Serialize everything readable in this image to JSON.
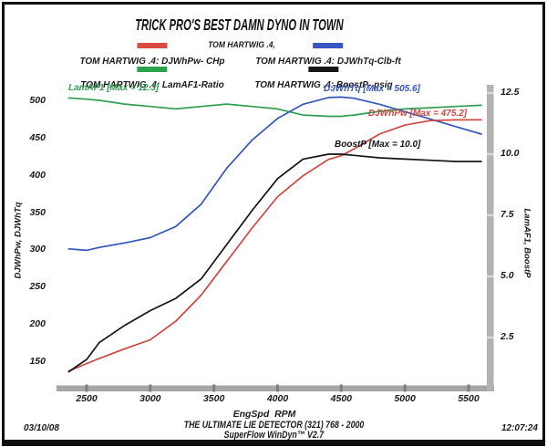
{
  "page": {
    "title": "TRICK PRO'S BEST DAMN DYNO IN TOWN",
    "subtitle": "TOM HARTWIG .4,",
    "footer_line1": "THE ULTIMATE LIE DETECTOR (321) 768 - 2000",
    "footer_line2": "SuperFlow WinDyn™ V2.7",
    "date": "03/10/08",
    "time": "12:07:24"
  },
  "legend": [
    {
      "label": "TOM HARTWIG .4: DJWhPw- CHp",
      "color": "#db4a3f"
    },
    {
      "label": "TOM HARTWIG .4: DJWhTq-Clb-ft",
      "color": "#3656c0"
    },
    {
      "label": "TOM HARTWIG .4: LamAF1-Ratio",
      "color": "#2ca24c"
    },
    {
      "label": "TOM HARTWIG .4: BoostP- psig",
      "color": "#161616"
    }
  ],
  "annotations": [
    {
      "text": "LamAF1 [Max = 12.3]",
      "color": "#2f9e50"
    },
    {
      "text": "DJWhTq [Max = 505.6]",
      "color": "#3656b8"
    },
    {
      "text": "DJWhPw [Max = 475.2]",
      "color": "#cf4540"
    },
    {
      "text": "BoostP [Max = 10.0]",
      "color": "#141414"
    }
  ],
  "axes": {
    "x_label": "EngSpd  RPM",
    "y_left_label": "DJWhPw, DJWhTq",
    "y_right_label": "LamAF1, BoostP",
    "x_ticks": [
      2500,
      3000,
      3500,
      4000,
      4500,
      5000,
      5500
    ],
    "y_left_ticks": [
      500,
      450,
      400,
      350,
      300,
      250,
      200,
      150
    ],
    "y_right_ticks": [
      "12.5",
      "10.0",
      "7.5",
      "5.0",
      "2.5"
    ]
  },
  "chart_data": {
    "type": "line",
    "title": "TRICK PRO'S BEST DAMN DYNO IN TOWN",
    "subtitle": "TOM HARTWIG .4,",
    "xlabel": "EngSpd RPM",
    "ylabel_left": "DJWhPw, DJWhTq",
    "ylabel_right": "LamAF1, BoostP",
    "grid": false,
    "legend_position": "top",
    "xlim": [
      2130,
      5650
    ],
    "ylim_left": [
      112,
      522
    ],
    "ylim_right": [
      0.3,
      12.85
    ],
    "rpm": [
      2360,
      2500,
      2600,
      2800,
      3000,
      3200,
      3400,
      3600,
      3800,
      4000,
      4200,
      4400,
      4500,
      4600,
      4800,
      5000,
      5200,
      5400,
      5600
    ],
    "series": [
      {
        "name": "DJWhPw- CHp",
        "axis": "left",
        "unit": "CHp",
        "color": "#cf4540",
        "max": 475.2,
        "values": [
          138,
          148,
          155,
          168,
          180,
          205,
          240,
          285,
          330,
          372,
          400,
          422,
          427,
          436,
          456,
          468,
          474,
          475,
          475.2
        ]
      },
      {
        "name": "DJWhTq-Clb-ft",
        "axis": "left",
        "unit": "Clb-ft",
        "color": "#3656b8",
        "max": 505.6,
        "values": [
          302,
          300,
          304,
          310,
          317,
          332,
          362,
          410,
          448,
          477,
          496,
          505,
          505.6,
          504,
          496,
          486,
          476,
          466,
          456
        ]
      },
      {
        "name": "LamAF1-Ratio",
        "axis": "right",
        "unit": "Ratio",
        "color": "#2f9e50",
        "max": 12.3,
        "values": [
          12.3,
          12.25,
          12.2,
          12.05,
          11.95,
          11.85,
          11.95,
          12.05,
          11.95,
          11.85,
          11.6,
          11.55,
          11.55,
          11.6,
          11.75,
          11.85,
          11.9,
          11.95,
          12.0
        ]
      },
      {
        "name": "BoostP- psig",
        "axis": "right",
        "unit": "psig",
        "color": "#141414",
        "max": 10.0,
        "values": [
          1.1,
          1.6,
          2.3,
          3.0,
          3.6,
          4.1,
          4.9,
          6.3,
          7.7,
          9.0,
          9.8,
          10.0,
          10.0,
          9.95,
          9.85,
          9.8,
          9.75,
          9.7,
          9.7
        ]
      }
    ]
  }
}
